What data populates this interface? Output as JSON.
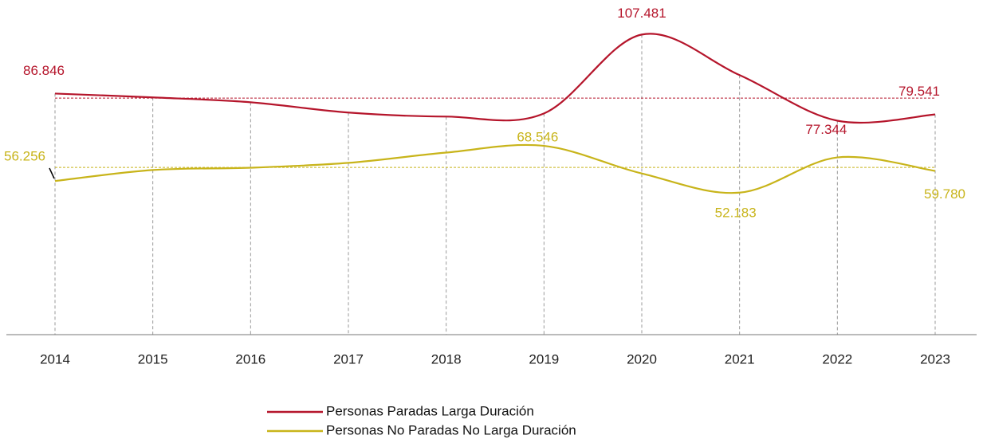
{
  "chart_data": {
    "type": "line",
    "categories": [
      "2014",
      "2015",
      "2016",
      "2017",
      "2018",
      "2019",
      "2020",
      "2021",
      "2022",
      "2023"
    ],
    "series": [
      {
        "name": "Personas Paradas Larga Duración",
        "color": "#b5152b",
        "values": [
          86846,
          85500,
          83800,
          80200,
          78800,
          79900,
          107481,
          93300,
          77344,
          79541
        ],
        "value_labels": [
          "86.846",
          null,
          null,
          null,
          null,
          null,
          "107.481",
          null,
          "77.344",
          "79.541"
        ]
      },
      {
        "name": "Personas No Paradas No Larga Duración",
        "color": "#c8b41a",
        "values": [
          56256,
          60100,
          60900,
          62600,
          66200,
          68546,
          58900,
          52183,
          64500,
          59780
        ],
        "value_labels": [
          "56.256",
          null,
          null,
          null,
          null,
          "68.546",
          null,
          "52.183",
          null,
          "59.780"
        ]
      }
    ],
    "ylim": [
      0,
      114000
    ]
  }
}
